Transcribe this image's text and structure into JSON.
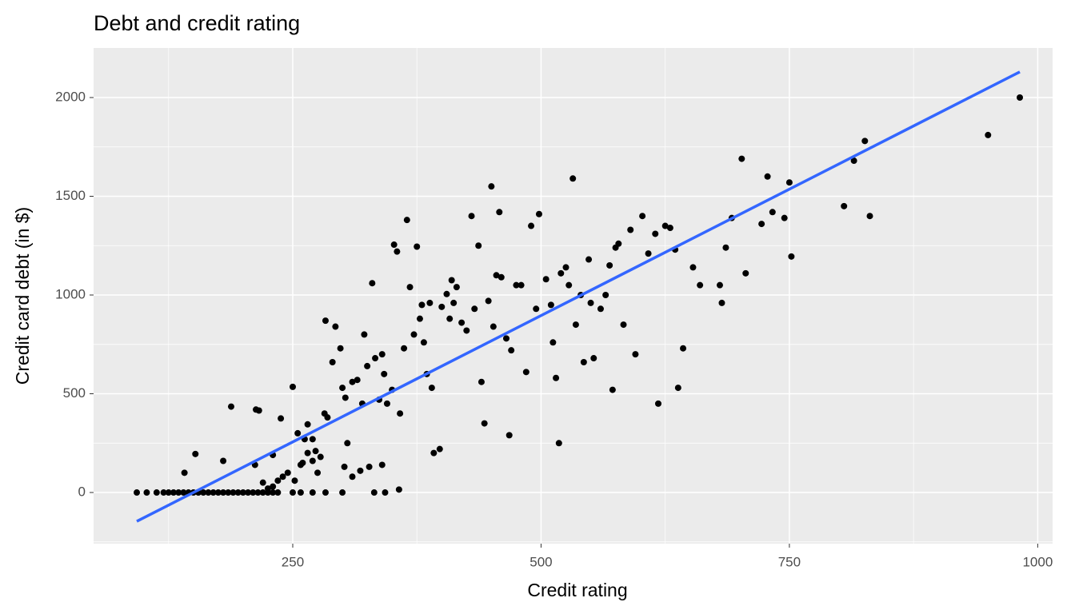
{
  "chart_data": {
    "type": "scatter",
    "title": "Debt and credit rating",
    "x_label": "Credit rating",
    "y_label": "Credit card debt (in $)",
    "xlim": [
      49.5,
      1015
    ],
    "ylim": [
      -259,
      2251
    ],
    "xticks": [
      250,
      500,
      750,
      1000
    ],
    "yticks": [
      0,
      500,
      1000,
      1500,
      2000
    ],
    "xminor_ticks": [
      125,
      375,
      625,
      875
    ],
    "yminor_ticks": [
      -250,
      250,
      750,
      1250,
      1750
    ],
    "grid": true,
    "points": {
      "color": "#000000",
      "x": [
        93,
        103,
        113,
        120,
        125,
        130,
        135,
        140,
        145,
        150,
        155,
        160,
        165,
        170,
        175,
        180,
        185,
        190,
        195,
        200,
        205,
        210,
        215,
        220,
        225,
        230,
        235,
        250,
        258,
        270,
        283,
        300,
        332,
        343,
        141,
        152,
        180,
        188,
        213,
        216,
        212,
        230,
        238,
        250,
        255,
        262,
        265,
        270,
        273,
        258,
        260,
        265,
        270,
        275,
        252,
        245,
        240,
        235,
        230,
        220,
        225,
        278,
        283,
        282,
        285,
        290,
        293,
        298,
        300,
        303,
        305,
        310,
        315,
        320,
        322,
        325,
        330,
        333,
        337,
        340,
        342,
        345,
        350,
        352,
        355,
        358,
        362,
        365,
        368,
        372,
        375,
        378,
        380,
        382,
        385,
        388,
        390,
        392,
        398,
        400,
        405,
        408,
        410,
        412,
        415,
        420,
        425,
        430,
        433,
        437,
        440,
        443,
        447,
        450,
        452,
        455,
        458,
        460,
        465,
        468,
        470,
        475,
        480,
        485,
        490,
        495,
        498,
        505,
        510,
        512,
        515,
        518,
        520,
        525,
        528,
        532,
        535,
        540,
        543,
        548,
        550,
        553,
        560,
        565,
        569,
        572,
        575,
        578,
        583,
        590,
        595,
        602,
        608,
        615,
        618,
        625,
        630,
        635,
        638,
        643,
        653,
        660,
        680,
        682,
        686,
        692,
        702,
        706,
        722,
        728,
        733,
        745,
        750,
        752,
        805,
        815,
        826,
        831,
        950,
        982,
        302,
        310,
        318,
        327,
        340,
        357
      ],
      "values": [
        0,
        0,
        0,
        0,
        0,
        0,
        0,
        0,
        0,
        0,
        0,
        0,
        0,
        0,
        0,
        0,
        0,
        0,
        0,
        0,
        0,
        0,
        0,
        0,
        0,
        0,
        0,
        0,
        0,
        0,
        0,
        0,
        0,
        0,
        100,
        195,
        160,
        435,
        420,
        415,
        140,
        190,
        375,
        535,
        300,
        270,
        345,
        270,
        210,
        140,
        150,
        200,
        160,
        100,
        60,
        100,
        80,
        60,
        30,
        50,
        20,
        180,
        870,
        400,
        380,
        660,
        840,
        730,
        530,
        480,
        250,
        560,
        570,
        450,
        800,
        640,
        1060,
        680,
        470,
        700,
        600,
        450,
        520,
        1255,
        1220,
        400,
        730,
        1380,
        1040,
        800,
        1245,
        880,
        950,
        760,
        600,
        960,
        530,
        200,
        220,
        940,
        1005,
        880,
        1075,
        960,
        1040,
        860,
        820,
        1400,
        930,
        1250,
        560,
        350,
        970,
        1550,
        840,
        1100,
        1420,
        1090,
        780,
        290,
        720,
        1050,
        1050,
        610,
        1350,
        930,
        1410,
        1080,
        950,
        760,
        580,
        250,
        1110,
        1140,
        1050,
        1590,
        850,
        1000,
        660,
        1180,
        960,
        680,
        930,
        1000,
        1150,
        520,
        1240,
        1260,
        850,
        1330,
        700,
        1400,
        1210,
        1310,
        450,
        1350,
        1340,
        1230,
        530,
        730,
        1140,
        1050,
        1050,
        960,
        1240,
        1390,
        1690,
        1110,
        1360,
        1600,
        1420,
        1390,
        1570,
        1195,
        1450,
        1680,
        1780,
        1400,
        1810,
        2000,
        130,
        80,
        110,
        130,
        140,
        15
      ]
    },
    "trend_line": {
      "color": "#3366ff",
      "x": [
        93,
        982
      ],
      "values": [
        -146,
        2130
      ]
    }
  }
}
